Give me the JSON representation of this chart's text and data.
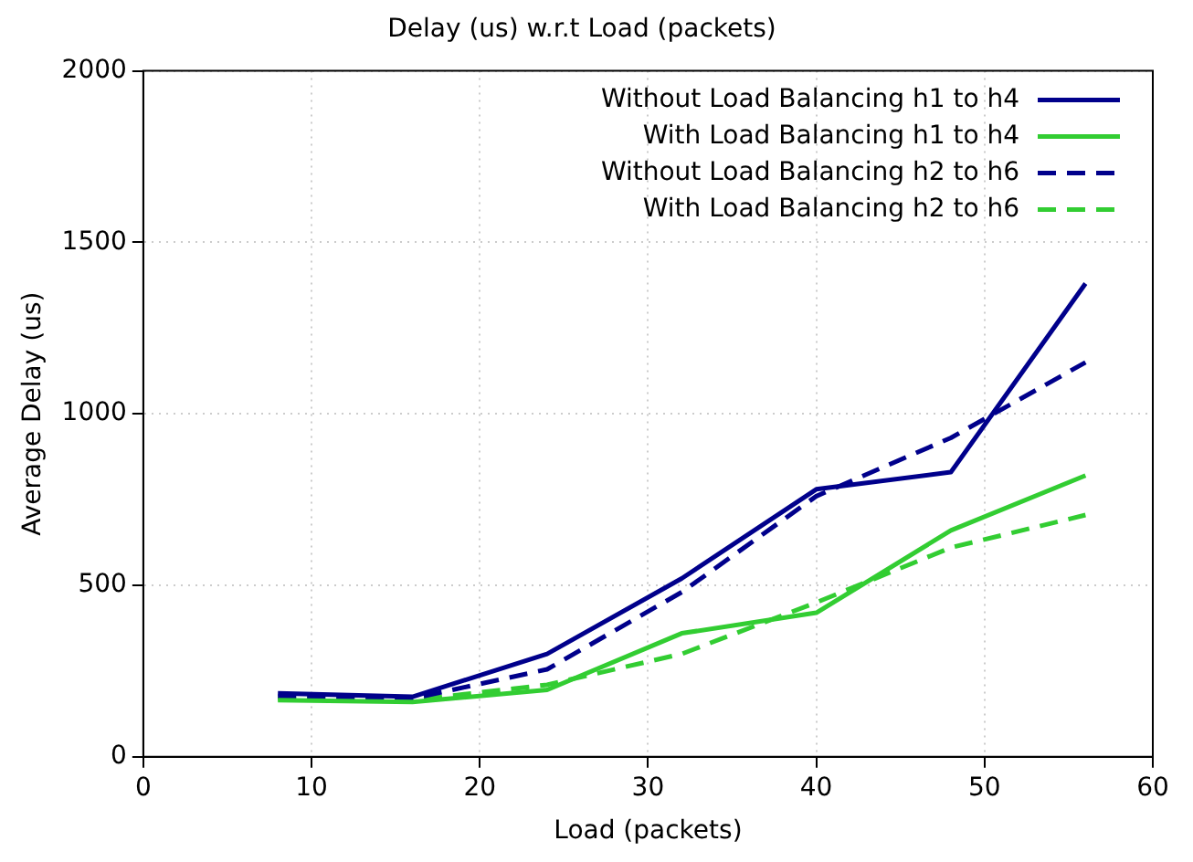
{
  "chart_data": {
    "type": "line",
    "title": "Delay (us) w.r.t Load (packets)",
    "xlabel": "Load (packets)",
    "ylabel": "Average Delay (us)",
    "x": [
      8,
      16,
      24,
      32,
      40,
      48,
      56
    ],
    "series": [
      {
        "name": "Without Load Balancing h1 to h4",
        "color": "#00008b",
        "line_style": "solid",
        "values": [
          185,
          175,
          300,
          520,
          780,
          830,
          1380
        ]
      },
      {
        "name": "With Load Balancing h1 to h4",
        "color": "#32cd32",
        "line_style": "solid",
        "values": [
          165,
          160,
          195,
          360,
          420,
          660,
          820
        ]
      },
      {
        "name": "Without Load Balancing h2 to h6",
        "color": "#00008b",
        "line_style": "dashed",
        "values": [
          175,
          170,
          255,
          480,
          760,
          930,
          1150
        ]
      },
      {
        "name": "With Load Balancing h2 to h6",
        "color": "#32cd32",
        "line_style": "dashed",
        "values": [
          170,
          165,
          210,
          300,
          450,
          610,
          705
        ]
      }
    ],
    "xlim": [
      0,
      60
    ],
    "xticks": [
      0,
      10,
      20,
      30,
      40,
      50,
      60
    ],
    "ylim": [
      0,
      2000
    ],
    "yticks": [
      0,
      500,
      1000,
      1500,
      2000
    ],
    "grid": true,
    "legend": "top right",
    "marker": "none"
  }
}
